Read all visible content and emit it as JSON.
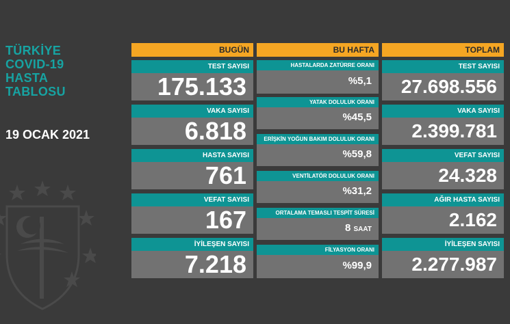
{
  "title_lines": [
    "TÜRKİYE",
    "COVID-19",
    "HASTA",
    "TABLOSU"
  ],
  "date": "19 OCAK 2021",
  "columns": {
    "today": {
      "header": "BUGÜN",
      "items": [
        {
          "label": "TEST SAYISI",
          "value": "175.133"
        },
        {
          "label": "VAKA SAYISI",
          "value": "6.818"
        },
        {
          "label": "HASTA SAYISI",
          "value": "761"
        },
        {
          "label": "VEFAT SAYISI",
          "value": "167"
        },
        {
          "label": "İYİLEŞEN SAYISI",
          "value": "7.218"
        }
      ]
    },
    "week": {
      "header": "BU HAFTA",
      "items": [
        {
          "label": "HASTALARDA ZATÜRRE ORANI",
          "value": "%5,1"
        },
        {
          "label": "YATAK DOLULUK ORANI",
          "value": "%45,5"
        },
        {
          "label": "ERİŞKİN YOĞUN BAKIM DOLULUK ORANI",
          "value": "%59,8"
        },
        {
          "label": "VENTİLATÖR DOLULUK ORANI",
          "value": "%31,2"
        },
        {
          "label": "ORTALAMA TEMASLI TESPİT SÜRESİ",
          "value": "8",
          "unit": "SAAT"
        },
        {
          "label": "FİLYASYON ORANI",
          "value": "%99,9"
        }
      ]
    },
    "total": {
      "header": "TOPLAM",
      "items": [
        {
          "label": "TEST SAYISI",
          "value": "27.698.556"
        },
        {
          "label": "VAKA SAYISI",
          "value": "2.399.781"
        },
        {
          "label": "VEFAT SAYISI",
          "value": "24.328"
        },
        {
          "label": "AĞIR HASTA SAYISI",
          "value": "2.162"
        },
        {
          "label": "İYİLEŞEN SAYISI",
          "value": "2.277.987"
        }
      ]
    }
  },
  "colors": {
    "accent": "#f5a623",
    "teal": "#0e9494",
    "title": "#17a3a2",
    "card": "#727272",
    "background": "#3a3a3a"
  },
  "emblem_icon": "health-ministry-emblem-icon"
}
